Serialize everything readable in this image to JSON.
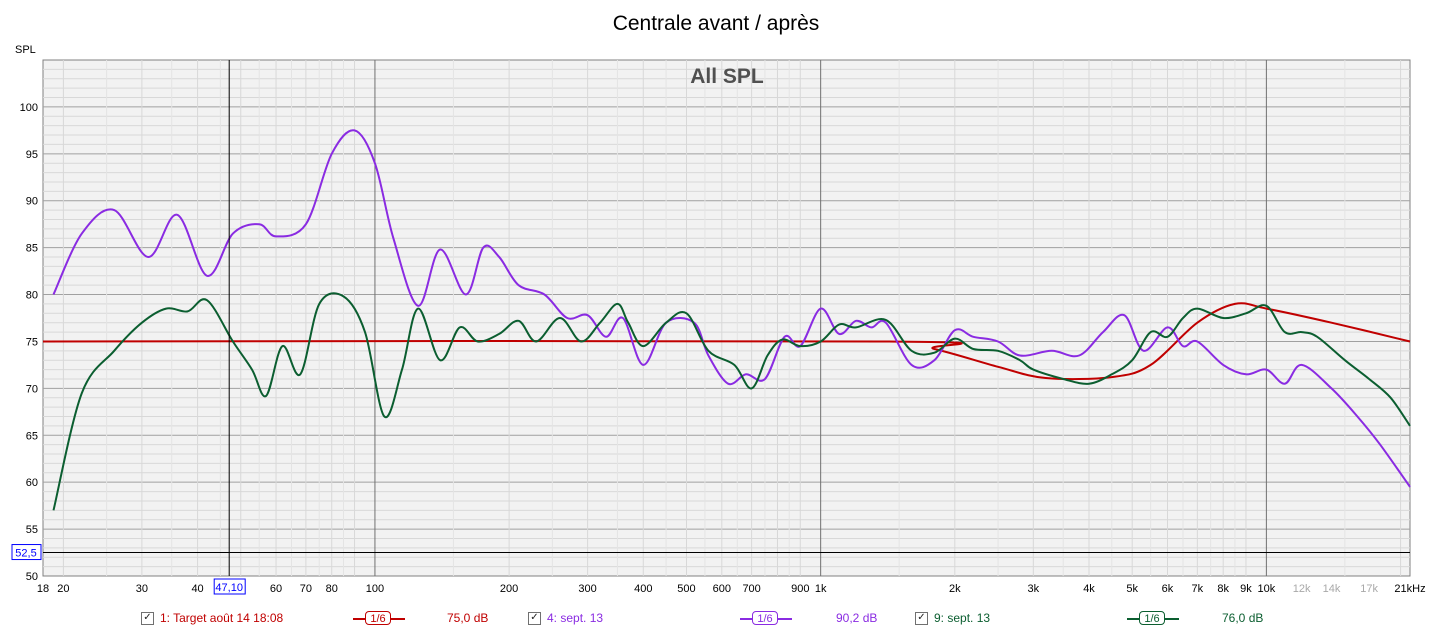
{
  "title": "Centrale avant / après",
  "subtitle": "All SPL",
  "cursor_x_value": "47,10",
  "cursor_y_value": "52,5",
  "colors": {
    "series1": "#c00000",
    "series2": "#8a2be2",
    "series3": "#0b5e30",
    "grid_major": "#a0a0a0",
    "grid_minor": "#d8d8d8",
    "plot_bg": "#f2f2f2"
  },
  "chart_data": {
    "type": "line",
    "title": "Centrale avant / après",
    "subtitle": "All SPL",
    "ylabel": "SPL",
    "xlabel": "",
    "x_scale": "log",
    "xlim": [
      18,
      21000
    ],
    "ylim": [
      50,
      105
    ],
    "grid": true,
    "y_ticks": [
      "50",
      "55",
      "60",
      "65",
      "70",
      "75",
      "80",
      "85",
      "90",
      "95",
      "100"
    ],
    "x_ticks": [
      {
        "v": 18,
        "label": "18"
      },
      {
        "v": 20,
        "label": "20"
      },
      {
        "v": 30,
        "label": "30"
      },
      {
        "v": 40,
        "label": "40"
      },
      {
        "v": 60,
        "label": "60"
      },
      {
        "v": 70,
        "label": "70"
      },
      {
        "v": 80,
        "label": "80"
      },
      {
        "v": 100,
        "label": "100"
      },
      {
        "v": 200,
        "label": "200"
      },
      {
        "v": 300,
        "label": "300"
      },
      {
        "v": 400,
        "label": "400"
      },
      {
        "v": 500,
        "label": "500"
      },
      {
        "v": 600,
        "label": "600"
      },
      {
        "v": 700,
        "label": "700"
      },
      {
        "v": 900,
        "label": "900"
      },
      {
        "v": 1000,
        "label": "1k"
      },
      {
        "v": 2000,
        "label": "2k"
      },
      {
        "v": 3000,
        "label": "3k"
      },
      {
        "v": 4000,
        "label": "4k"
      },
      {
        "v": 5000,
        "label": "5k"
      },
      {
        "v": 6000,
        "label": "6k"
      },
      {
        "v": 7000,
        "label": "7k"
      },
      {
        "v": 8000,
        "label": "8k"
      },
      {
        "v": 9000,
        "label": "9k"
      },
      {
        "v": 10000,
        "label": "10k"
      },
      {
        "v": 12000,
        "label": "12k",
        "faded": true
      },
      {
        "v": 14000,
        "label": "14k",
        "faded": true
      },
      {
        "v": 17000,
        "label": "17k",
        "faded": true
      },
      {
        "v": 21000,
        "label": "21kHz"
      }
    ],
    "cursor": {
      "x": 47.1,
      "y": 52.5
    },
    "series": [
      {
        "name": "1: Target août 14 18:08",
        "color": "#c00000",
        "smoothing": "1/6",
        "level": "75,0 dB",
        "x": [
          18,
          1400,
          1800,
          2500,
          3200,
          4500,
          5500,
          7000,
          8500,
          10000,
          14000,
          21000
        ],
        "y": [
          75,
          75,
          74.2,
          72.3,
          71.1,
          71.2,
          72.5,
          77,
          79,
          78.5,
          77,
          75
        ]
      },
      {
        "name": "4: sept. 13",
        "color": "#8a2be2",
        "smoothing": "1/6",
        "level": "90,2 dB",
        "x": [
          19,
          22,
          26,
          31,
          36,
          42,
          48,
          55,
          60,
          70,
          80,
          90,
          100,
          110,
          125,
          140,
          160,
          175,
          190,
          210,
          240,
          270,
          300,
          330,
          360,
          400,
          450,
          520,
          560,
          620,
          680,
          750,
          830,
          900,
          1000,
          1100,
          1200,
          1300,
          1400,
          1600,
          1800,
          2000,
          2200,
          2500,
          2800,
          3300,
          3800,
          4300,
          4800,
          5300,
          6000,
          6500,
          7000,
          8000,
          9000,
          10000,
          11000,
          12000,
          14000,
          16000,
          18000,
          21000
        ],
        "y": [
          80,
          86.5,
          89,
          84,
          88.5,
          82,
          86.5,
          87.5,
          86.2,
          87.5,
          95,
          97.5,
          94,
          86,
          78.8,
          84.8,
          80,
          85,
          84,
          81,
          80,
          77.5,
          77.8,
          75.5,
          77.5,
          72.5,
          77,
          77,
          73.5,
          70.5,
          71.5,
          71,
          75.5,
          74.5,
          78.5,
          75.8,
          77.2,
          76.5,
          77,
          72.5,
          73,
          76.2,
          75.5,
          75,
          73.5,
          74,
          73.5,
          76,
          77.8,
          74,
          76.5,
          74.5,
          75,
          72.5,
          71.5,
          72,
          70.5,
          72.5,
          70,
          67,
          64,
          59.5
        ]
      },
      {
        "name": "9: sept. 13",
        "color": "#0b5e30",
        "smoothing": "1/6",
        "level": "76,0 dB",
        "x": [
          19,
          22,
          26,
          30,
          34,
          38,
          42,
          48,
          53,
          57,
          62,
          68,
          75,
          85,
          95,
          105,
          115,
          125,
          140,
          155,
          170,
          190,
          210,
          230,
          260,
          290,
          320,
          350,
          370,
          400,
          450,
          500,
          560,
          640,
          700,
          760,
          820,
          900,
          1000,
          1100,
          1200,
          1400,
          1600,
          1800,
          2000,
          2200,
          2500,
          2800,
          3000,
          3500,
          4000,
          4500,
          5000,
          5500,
          6000,
          6500,
          7000,
          8000,
          9000,
          10000,
          11000,
          12000,
          13000,
          15000,
          17000,
          19000,
          21000
        ],
        "y": [
          57,
          69.5,
          74,
          77,
          78.5,
          78.2,
          79.4,
          75,
          72,
          69.2,
          74.5,
          71.5,
          79,
          79.8,
          76,
          67,
          72,
          78.5,
          73,
          76.5,
          75,
          75.8,
          77.2,
          75,
          77.5,
          75,
          77,
          79,
          77,
          74.5,
          77,
          78,
          74,
          72.5,
          70,
          73.5,
          75.2,
          74.5,
          75,
          76.8,
          76.5,
          77.3,
          74,
          73.8,
          75.3,
          74.2,
          74,
          73,
          72,
          71,
          70.5,
          71.5,
          73,
          76,
          75.5,
          77.5,
          78.5,
          77.5,
          78,
          78.8,
          76,
          76,
          75.5,
          73,
          71,
          69,
          66
        ]
      }
    ]
  },
  "legend": [
    {
      "name": "1: Target août 14 18:08",
      "smoothing": "1/6",
      "level": "75,0 dB",
      "checked": "✓"
    },
    {
      "name": "4: sept. 13",
      "smoothing": "1/6",
      "level": "90,2 dB",
      "checked": "✓"
    },
    {
      "name": "9: sept. 13",
      "smoothing": "1/6",
      "level": "76,0 dB",
      "checked": "✓"
    }
  ]
}
